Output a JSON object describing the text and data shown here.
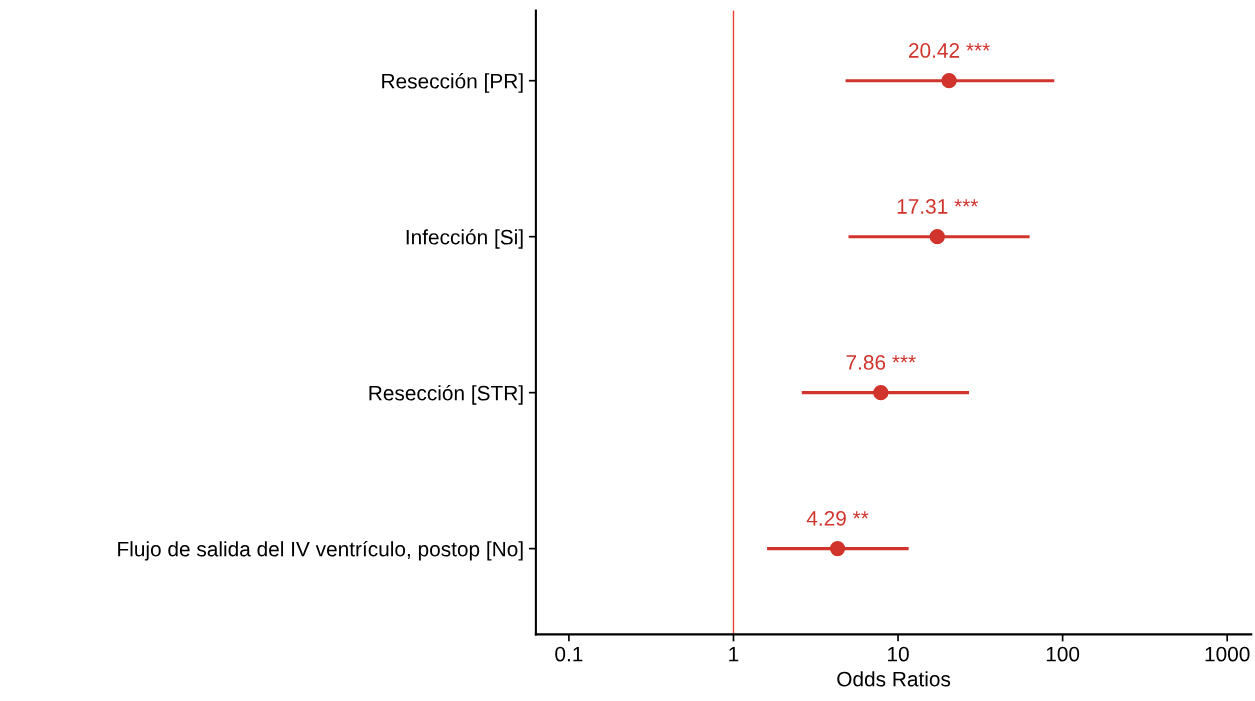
{
  "chart_data": {
    "type": "scatter",
    "orientation": "horizontal",
    "xlabel": "Odds Ratios",
    "log": "x",
    "categories": [
      "Resección [PR]",
      "Infección [Si]",
      "Resección [STR]",
      "Flujo de salida del IV ventrículo, postop [No]"
    ],
    "values": [
      20.42,
      17.31,
      7.86,
      4.29
    ],
    "errors": [
      [
        4.8,
        89
      ],
      [
        5.0,
        63
      ],
      [
        2.6,
        27
      ],
      [
        1.6,
        11.6
      ]
    ],
    "value_labels": [
      "20.42 ***",
      "17.31 ***",
      "7.86 ***",
      "4.29 **"
    ],
    "color": "#d0342c",
    "marker": "circle",
    "grid": false,
    "legend": false,
    "xlim": [
      0.063,
      1400
    ],
    "xticks": [
      0.1,
      1,
      10,
      100,
      1000
    ],
    "ref_lines": [
      {
        "axis": "x",
        "value": 1,
        "color": "#e8453c",
        "line_style": "solid"
      }
    ]
  }
}
